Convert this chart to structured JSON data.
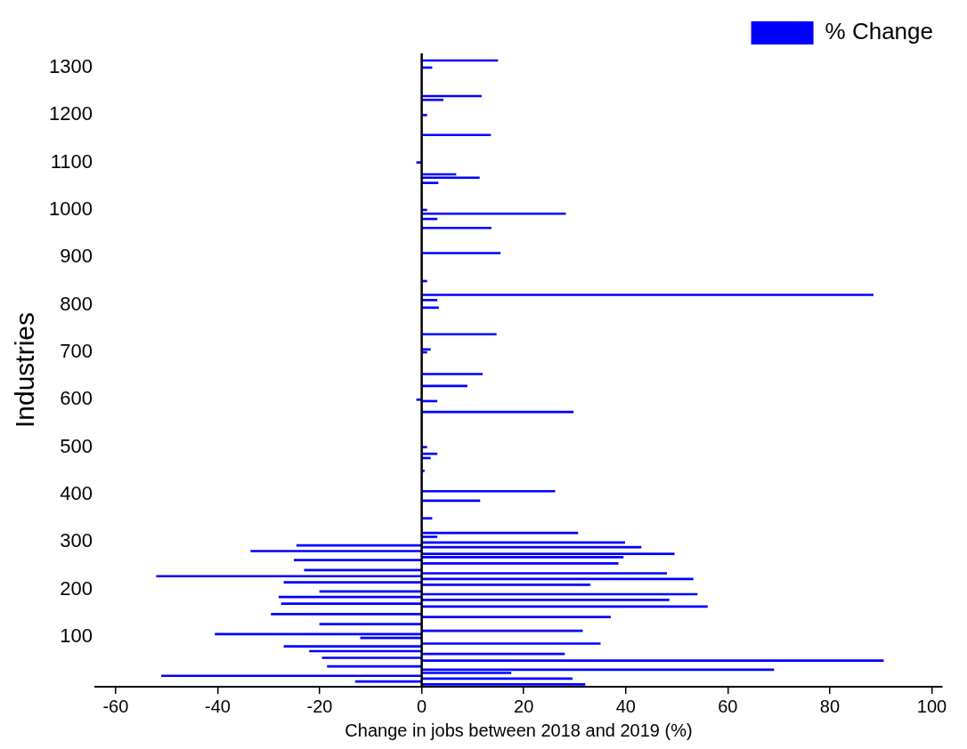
{
  "chart_data": {
    "type": "bar",
    "orientation": "horizontal",
    "xlabel": "Change in jobs between 2018 and 2019 (%)",
    "ylabel": "Industries",
    "legend": "top right",
    "x": [
      0,
      6,
      12,
      18,
      24,
      31,
      38,
      50,
      56,
      64,
      70,
      80,
      86,
      98,
      106,
      113,
      127,
      142,
      148,
      164,
      170,
      178,
      184,
      190,
      196,
      210,
      215,
      222,
      228,
      234,
      241,
      255,
      262,
      268,
      275,
      281,
      289,
      293,
      299,
      311,
      319,
      350,
      387,
      407,
      450,
      477,
      486,
      500,
      574,
      597,
      600,
      629,
      654,
      700,
      706,
      738,
      794,
      810,
      821,
      850,
      909,
      962,
      981,
      992,
      1000,
      1057,
      1068,
      1075,
      1100,
      1158,
      1200,
      1232,
      1240,
      1300,
      1315
    ],
    "series": [
      {
        "name": "% Change",
        "color": "#0000ff",
        "values": [
          32,
          -13,
          29.5,
          -51,
          17.5,
          69,
          -18.5,
          90.5,
          -19.5,
          28,
          -22,
          -27,
          35,
          -12,
          -40.5,
          31.5,
          -20,
          37,
          -29.5,
          56,
          -27.5,
          48.5,
          -28,
          54,
          -20,
          33,
          -27,
          53.2,
          -52,
          48,
          -23,
          38.5,
          -25,
          39.5,
          49.5,
          -33.5,
          43,
          -24.5,
          39.8,
          3,
          30.6,
          2,
          11.4,
          26.1,
          0.5,
          1.7,
          3,
          1,
          29.7,
          3,
          -1,
          8.9,
          11.9,
          1,
          1.7,
          14.6,
          3.3,
          3,
          88.5,
          1,
          15.4,
          13.6,
          3,
          28.2,
          1,
          3.2,
          11.3,
          6.7,
          -1,
          13.5,
          1,
          4.2,
          11.7,
          2,
          14.9
        ]
      }
    ],
    "xlim": [
      -64,
      102
    ],
    "xticks": [
      -60,
      -40,
      -20,
      0,
      20,
      40,
      60,
      80,
      100
    ],
    "ylim": [
      -5,
      1330
    ],
    "yticks": [
      100,
      200,
      300,
      400,
      500,
      600,
      700,
      800,
      900,
      1000,
      1100,
      1200,
      1300
    ]
  }
}
